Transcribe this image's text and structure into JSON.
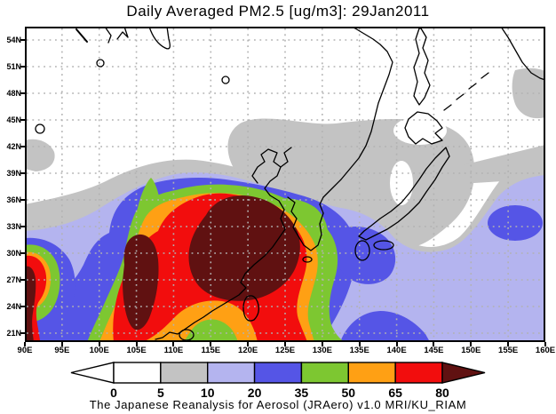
{
  "title": "Daily Averaged PM2.5 [ug/m3]: 29Jan2011",
  "caption": "The Japanese Reanalysis for Aerosol (JRAero) v1.0 MRI/KU_RIAM",
  "axes": {
    "lat_labels": [
      "54N",
      "51N",
      "48N",
      "45N",
      "42N",
      "39N",
      "36N",
      "33N",
      "30N",
      "27N",
      "24N",
      "21N"
    ],
    "lon_labels": [
      "90E",
      "95E",
      "100E",
      "105E",
      "110E",
      "115E",
      "120E",
      "125E",
      "130E",
      "135E",
      "140E",
      "145E",
      "150E",
      "155E",
      "160E"
    ]
  },
  "colorbar": {
    "labels": [
      "0",
      "5",
      "10",
      "20",
      "35",
      "50",
      "65",
      "80"
    ],
    "segment_keys": [
      "white",
      "gray",
      "periwinkle",
      "blue",
      "green",
      "orange",
      "red"
    ],
    "under_key": "white",
    "over_key": "maroon"
  },
  "palette": {
    "white": "#ffffff",
    "gray": "#c3c3c3",
    "periwinkle": "#b4b4ef",
    "blue": "#5555e6",
    "green": "#7dc731",
    "orange": "#ffa014",
    "red": "#f20d0d",
    "maroon": "#601111",
    "grid": "#b2b2b2",
    "coastline": "#000000"
  },
  "chart_data": {
    "type": "heatmap",
    "title": "Daily Averaged PM2.5 [ug/m3]: 29Jan2011",
    "variable": "PM2.5 daily average",
    "units": "ug/m3",
    "date": "29Jan2011",
    "xlabel": "longitude",
    "ylabel": "latitude",
    "x_ticks": [
      "90E",
      "95E",
      "100E",
      "105E",
      "110E",
      "115E",
      "120E",
      "125E",
      "130E",
      "135E",
      "140E",
      "145E",
      "150E",
      "155E",
      "160E"
    ],
    "y_ticks": [
      "21N",
      "24N",
      "27N",
      "30N",
      "33N",
      "36N",
      "39N",
      "42N",
      "45N",
      "48N",
      "51N",
      "54N"
    ],
    "xlim_deg_east": [
      90,
      160
    ],
    "ylim_deg_north": [
      19.5,
      55.5
    ],
    "grid": "dotted lat/lon graticule every 5 deg lon and 3 deg lat",
    "legend_position": "horizontal colorbar below map",
    "contour_levels": [
      0,
      5,
      10,
      20,
      35,
      50,
      65,
      80
    ],
    "level_colors": {
      "under_0": "#ffffff",
      "0_5": "#ffffff",
      "5_10": "#c3c3c3",
      "10_20": "#b4b4ef",
      "20_35": "#5555e6",
      "35_50": "#7dc731",
      "50_65": "#ffa014",
      "65_80": "#f20d0d",
      "over_80": "#601111"
    },
    "regions": [
      {
        "area": "eastern China / North China Plain (approx 108E-125E, 27N-35N)",
        "pm25": ">80"
      },
      {
        "area": "Sichuan-Guizhou column (approx 102E-108E, 22N-33N)",
        "pm25": ">80"
      },
      {
        "area": "left map edge near 90E, 23N-27N (S. Asia plume)",
        "pm25": ">80"
      },
      {
        "area": "ring around China plume and SE China coast",
        "pm25": "50-80"
      },
      {
        "area": "Korea and Yellow Sea (approx 122E-131E, 33N-39N)",
        "pm25": "20-50"
      },
      {
        "area": "seas south of Japan, 20N-33N ocean band",
        "pm25": "10-35"
      },
      {
        "area": "blue maxima near SW Japan (131E-135E, 30N-33N), near 140E at 21N, near 156E 27N",
        "pm25": "20-35"
      },
      {
        "area": "NE China, Sea of Japan, N. Japan, patches at 39-42N west, 152E-160E bands",
        "pm25": "5-10"
      },
      {
        "area": "Siberia / far north and NE Pacific corner",
        "pm25": "0-5"
      }
    ]
  }
}
